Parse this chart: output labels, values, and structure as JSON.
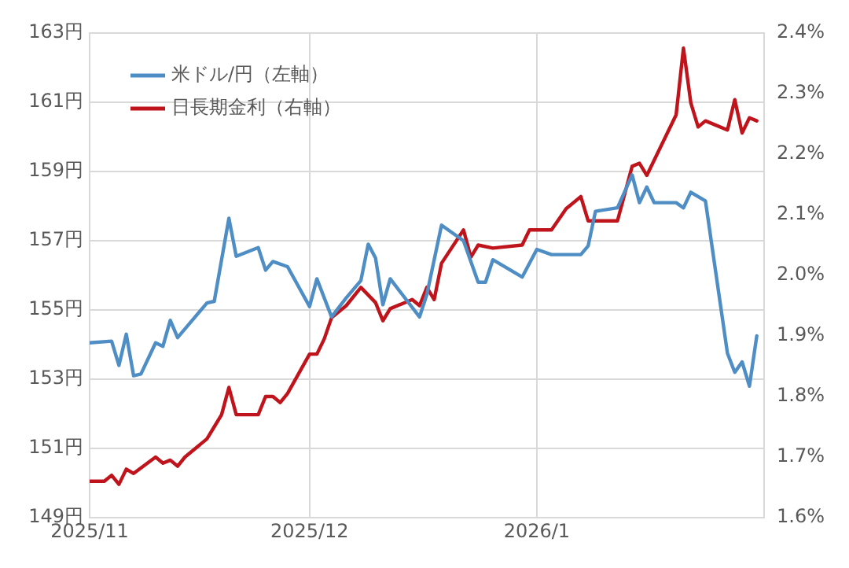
{
  "chart_data": {
    "type": "line",
    "legend": "top left",
    "grid": true,
    "line_style": "solid",
    "marker": "none",
    "xlim": [
      "2025-11-01",
      "2026-02-01"
    ],
    "xticks": [
      {
        "value": "2025-11-01",
        "label": "2025/11"
      },
      {
        "value": "2025-12-01",
        "label": "2025/12"
      },
      {
        "value": "2026-01-01",
        "label": "2026/1"
      }
    ],
    "ylim": [
      149,
      163
    ],
    "yticks": [
      {
        "value": 149,
        "label": "149円"
      },
      {
        "value": 151,
        "label": "151円"
      },
      {
        "value": 153,
        "label": "153円"
      },
      {
        "value": 155,
        "label": "155円"
      },
      {
        "value": 157,
        "label": "157円"
      },
      {
        "value": 159,
        "label": "159円"
      },
      {
        "value": 161,
        "label": "161円"
      },
      {
        "value": 163,
        "label": "163円"
      }
    ],
    "y2lim": [
      1.6,
      2.4
    ],
    "y2ticks": [
      {
        "value": 1.6,
        "label": "1.6%"
      },
      {
        "value": 1.7,
        "label": "1.7%"
      },
      {
        "value": 1.8,
        "label": "1.8%"
      },
      {
        "value": 1.9,
        "label": "1.9%"
      },
      {
        "value": 2.0,
        "label": "2.0%"
      },
      {
        "value": 2.1,
        "label": "2.1%"
      },
      {
        "value": 2.2,
        "label": "2.2%"
      },
      {
        "value": 2.3,
        "label": "2.3%"
      },
      {
        "value": 2.4,
        "label": "2.4%"
      }
    ],
    "series": [
      {
        "name": "米ドル/円（左軸）",
        "color": "#4f8ec4",
        "axis": "y",
        "x": [
          "2025-11-01",
          "2025-11-04",
          "2025-11-05",
          "2025-11-06",
          "2025-11-07",
          "2025-11-08",
          "2025-11-10",
          "2025-11-11",
          "2025-11-12",
          "2025-11-13",
          "2025-11-17",
          "2025-11-18",
          "2025-11-20",
          "2025-11-21",
          "2025-11-24",
          "2025-11-25",
          "2025-11-26",
          "2025-11-28",
          "2025-12-01",
          "2025-12-02",
          "2025-12-04",
          "2025-12-06",
          "2025-12-08",
          "2025-12-09",
          "2025-12-10",
          "2025-12-11",
          "2025-12-12",
          "2025-12-16",
          "2025-12-17",
          "2025-12-19",
          "2025-12-22",
          "2025-12-24",
          "2025-12-25",
          "2025-12-26",
          "2025-12-30",
          "2026-01-01",
          "2026-01-03",
          "2026-01-07",
          "2026-01-08",
          "2026-01-09",
          "2026-01-12",
          "2026-01-14",
          "2026-01-15",
          "2026-01-16",
          "2026-01-17",
          "2026-01-20",
          "2026-01-21",
          "2026-01-22",
          "2026-01-24",
          "2026-01-27",
          "2026-01-28",
          "2026-01-29",
          "2026-01-30",
          "2026-01-31"
        ],
        "values": [
          154.05,
          154.1,
          153.4,
          154.3,
          153.1,
          153.15,
          154.05,
          153.95,
          154.7,
          154.2,
          155.2,
          155.25,
          157.65,
          156.55,
          156.8,
          156.15,
          156.4,
          156.25,
          155.1,
          155.9,
          154.8,
          155.35,
          155.85,
          156.9,
          156.5,
          155.15,
          155.9,
          154.8,
          155.45,
          157.45,
          157.0,
          155.8,
          155.8,
          156.45,
          155.95,
          156.75,
          156.6,
          156.6,
          156.85,
          157.85,
          157.95,
          158.9,
          158.1,
          158.55,
          158.1,
          158.1,
          157.95,
          158.4,
          158.15,
          153.75,
          153.2,
          153.5,
          152.8,
          154.25
        ]
      },
      {
        "name": "日長期金利（右軸）",
        "color": "#c0141c",
        "axis": "y2",
        "x": [
          "2025-11-01",
          "2025-11-03",
          "2025-11-04",
          "2025-11-05",
          "2025-11-06",
          "2025-11-07",
          "2025-11-10",
          "2025-11-11",
          "2025-11-12",
          "2025-11-13",
          "2025-11-14",
          "2025-11-17",
          "2025-11-18",
          "2025-11-19",
          "2025-11-20",
          "2025-11-21",
          "2025-11-24",
          "2025-11-25",
          "2025-11-26",
          "2025-11-27",
          "2025-11-28",
          "2025-12-01",
          "2025-12-02",
          "2025-12-03",
          "2025-12-04",
          "2025-12-06",
          "2025-12-08",
          "2025-12-10",
          "2025-12-11",
          "2025-12-12",
          "2025-12-15",
          "2025-12-16",
          "2025-12-17",
          "2025-12-18",
          "2025-12-19",
          "2025-12-22",
          "2025-12-23",
          "2025-12-24",
          "2025-12-26",
          "2025-12-30",
          "2025-12-31",
          "2026-01-03",
          "2026-01-05",
          "2026-01-07",
          "2026-01-08",
          "2026-01-12",
          "2026-01-14",
          "2026-01-15",
          "2026-01-16",
          "2026-01-20",
          "2026-01-21",
          "2026-01-22",
          "2026-01-23",
          "2026-01-24",
          "2026-01-27",
          "2026-01-28",
          "2026-01-29",
          "2026-01-30",
          "2026-01-31"
        ],
        "values": [
          1.66,
          1.66,
          1.67,
          1.655,
          1.68,
          1.673,
          1.7,
          1.69,
          1.695,
          1.685,
          1.7,
          1.73,
          1.75,
          1.77,
          1.815,
          1.77,
          1.77,
          1.8,
          1.8,
          1.79,
          1.805,
          1.87,
          1.87,
          1.895,
          1.93,
          1.95,
          1.98,
          1.955,
          1.925,
          1.945,
          1.96,
          1.95,
          1.98,
          1.96,
          2.02,
          2.075,
          2.03,
          2.05,
          2.045,
          2.05,
          2.075,
          2.075,
          2.11,
          2.13,
          2.09,
          2.09,
          2.18,
          2.185,
          2.165,
          2.265,
          2.375,
          2.285,
          2.245,
          2.255,
          2.24,
          2.29,
          2.235,
          2.26,
          2.255
        ]
      }
    ]
  }
}
